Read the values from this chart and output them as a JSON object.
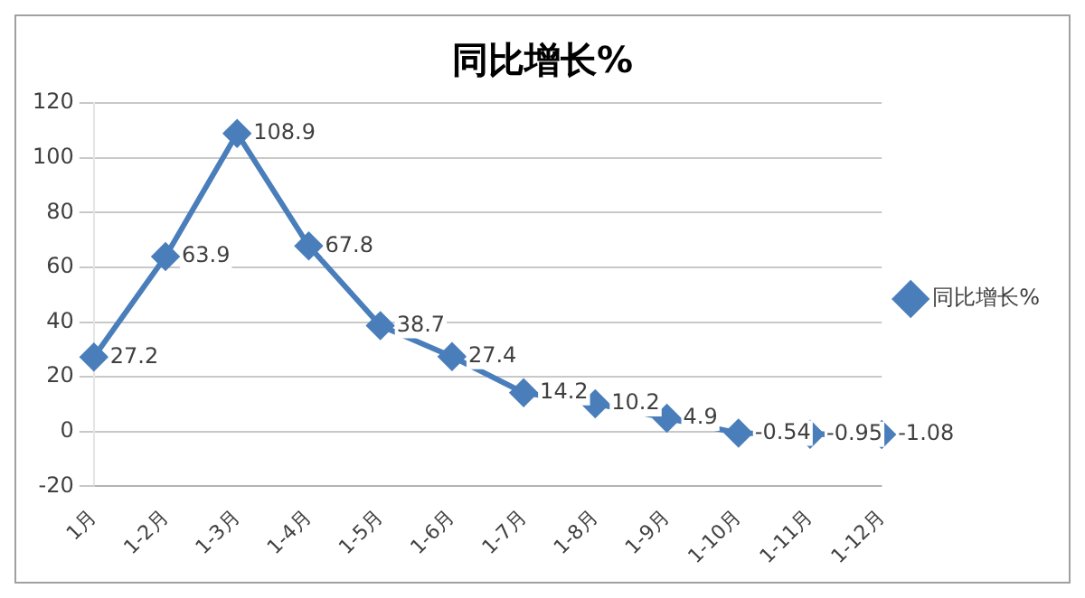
{
  "chart_data": {
    "type": "line",
    "title": "同比增长%",
    "categories": [
      "1月",
      "1-2月",
      "1-3月",
      "1-4月",
      "1-5月",
      "1-6月",
      "1-7月",
      "1-8月",
      "1-9月",
      "1-10月",
      "1-11月",
      "1-12月"
    ],
    "series": [
      {
        "name": "同比增长%",
        "color": "#4a7ebb",
        "values": [
          27.2,
          63.9,
          108.9,
          67.8,
          38.7,
          27.4,
          14.2,
          10.2,
          4.9,
          -0.54,
          -0.95,
          -1.08
        ]
      }
    ],
    "ylim": [
      -20,
      120
    ],
    "yticks": [
      -20,
      0,
      20,
      40,
      60,
      80,
      100,
      120
    ],
    "grid": "y",
    "legend": "right",
    "marker": "diamond",
    "line_style": "solid",
    "data_labels": true
  }
}
